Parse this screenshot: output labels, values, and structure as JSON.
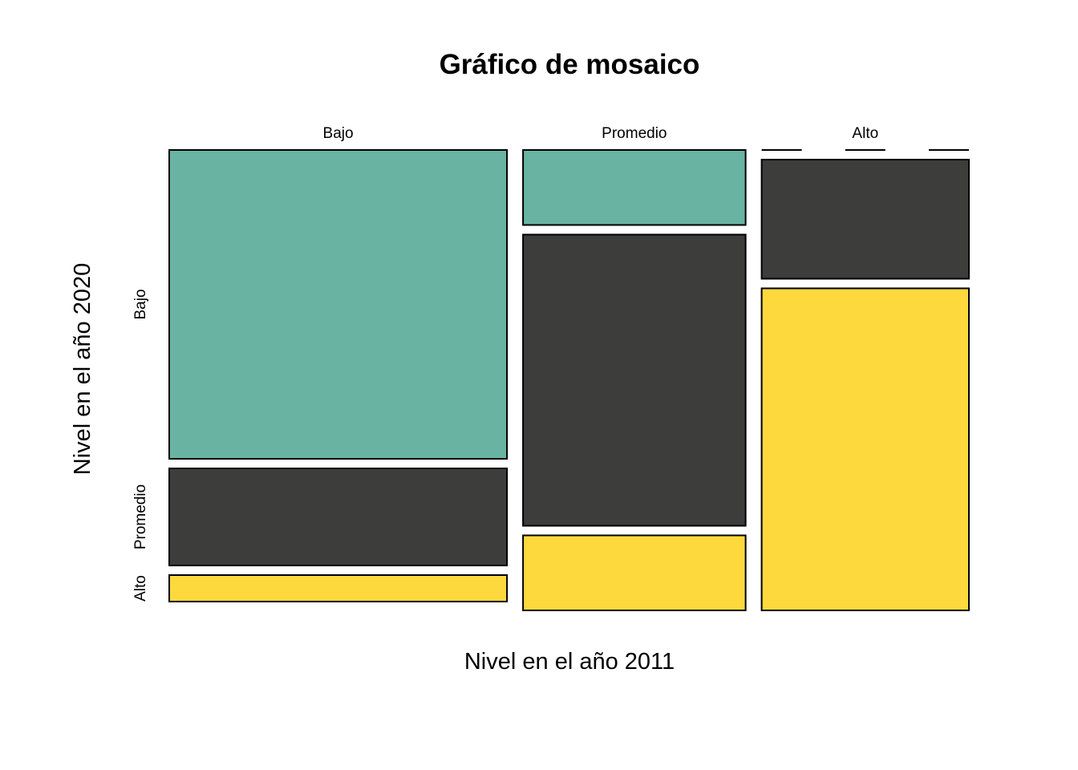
{
  "chart_data": {
    "type": "mosaic",
    "title": "Gráfico de mosaico",
    "xlabel": "Nivel en el año 2011",
    "ylabel": "Nivel en el año 2020",
    "x_categories": [
      "Bajo",
      "Promedio",
      "Alto"
    ],
    "y_categories": [
      "Bajo",
      "Promedio",
      "Alto"
    ],
    "column_proportions": [
      0.44,
      0.29,
      0.27
    ],
    "cells": [
      {
        "x": "Bajo",
        "proportions": [
          0.7,
          0.22,
          0.06
        ]
      },
      {
        "x": "Promedio",
        "proportions": [
          0.17,
          0.66,
          0.17
        ]
      },
      {
        "x": "Alto",
        "proportions": [
          0.0,
          0.27,
          0.73
        ]
      }
    ],
    "colors": {
      "Bajo": "#69b3a2",
      "Promedio": "#3d3d3b",
      "Alto": "#fdd93d"
    },
    "grid": false,
    "legend": "none"
  }
}
